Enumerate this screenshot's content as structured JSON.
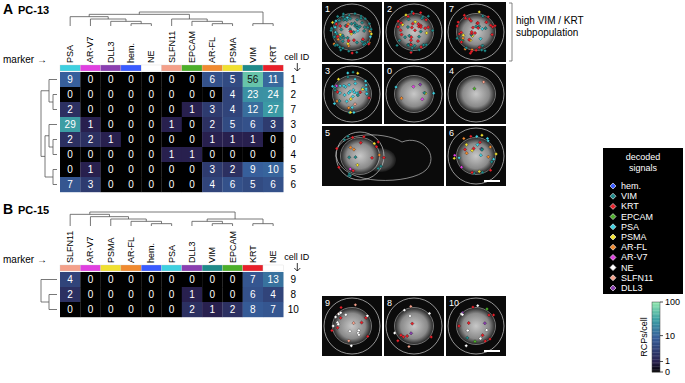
{
  "chart_data": [
    {
      "type": "heatmap",
      "panel_label": "A",
      "title": "PC-13",
      "x_label": "marker →",
      "y_label": "cell ID",
      "categories": [
        "PSA",
        "AR-V7",
        "DLL3",
        "hem.",
        "NE",
        "SLFN11",
        "EPCAM",
        "AR-FL",
        "PSMA",
        "VIM",
        "KRT"
      ],
      "rows": [
        "1",
        "2",
        "7",
        "3",
        "0",
        "4",
        "5",
        "6"
      ],
      "cells": [
        [
          9,
          0,
          0,
          0,
          0,
          0,
          0,
          6,
          5,
          56,
          11
        ],
        [
          0,
          0,
          0,
          0,
          0,
          0,
          0,
          0,
          4,
          23,
          24
        ],
        [
          2,
          0,
          0,
          0,
          0,
          0,
          1,
          3,
          4,
          12,
          27
        ],
        [
          29,
          1,
          0,
          0,
          0,
          1,
          0,
          2,
          5,
          6,
          3
        ],
        [
          2,
          2,
          1,
          0,
          0,
          0,
          0,
          1,
          1,
          1,
          0
        ],
        [
          0,
          0,
          0,
          0,
          0,
          1,
          1,
          0,
          0,
          0,
          0
        ],
        [
          0,
          1,
          0,
          0,
          0,
          0,
          0,
          3,
          2,
          9,
          10
        ],
        [
          7,
          3,
          0,
          0,
          0,
          0,
          0,
          4,
          6,
          5,
          6
        ]
      ],
      "annotation": "high VIM / KRT subpopulation"
    },
    {
      "type": "heatmap",
      "panel_label": "B",
      "title": "PC-15",
      "x_label": "marker →",
      "y_label": "cell ID",
      "categories": [
        "SLFN11",
        "AR-V7",
        "PSMA",
        "AR-FL",
        "hem.",
        "PSA",
        "DLL3",
        "VIM",
        "EPCAM",
        "KRT",
        "NE"
      ],
      "rows": [
        "9",
        "8",
        "10"
      ],
      "cells": [
        [
          4,
          0,
          0,
          0,
          0,
          0,
          0,
          0,
          0,
          7,
          13
        ],
        [
          2,
          0,
          0,
          0,
          0,
          0,
          1,
          0,
          0,
          6,
          4
        ],
        [
          0,
          0,
          0,
          0,
          0,
          0,
          2,
          1,
          2,
          8,
          7
        ]
      ]
    }
  ],
  "colorbar": {
    "label": "RCPs/cell",
    "range": [
      0,
      100
    ],
    "ticks": [
      0,
      1,
      10,
      100
    ]
  },
  "legend": {
    "title": "decoded signals",
    "items": [
      {
        "name": "hem.",
        "color": "#3a5bff"
      },
      {
        "name": "VIM",
        "color": "#1f8a8a"
      },
      {
        "name": "KRT",
        "color": "#e8202a"
      },
      {
        "name": "EPCAM",
        "color": "#4caf2a"
      },
      {
        "name": "PSA",
        "color": "#3fd0e0"
      },
      {
        "name": "PSMA",
        "color": "#f0e030"
      },
      {
        "name": "AR-FL",
        "color": "#f08a30"
      },
      {
        "name": "AR-V7",
        "color": "#e040e0"
      },
      {
        "name": "NE",
        "color": "#ffffff"
      },
      {
        "name": "SLFN11",
        "color": "#f4a08a"
      },
      {
        "name": "DLL3",
        "color": "#8a3fb0"
      }
    ]
  }
}
